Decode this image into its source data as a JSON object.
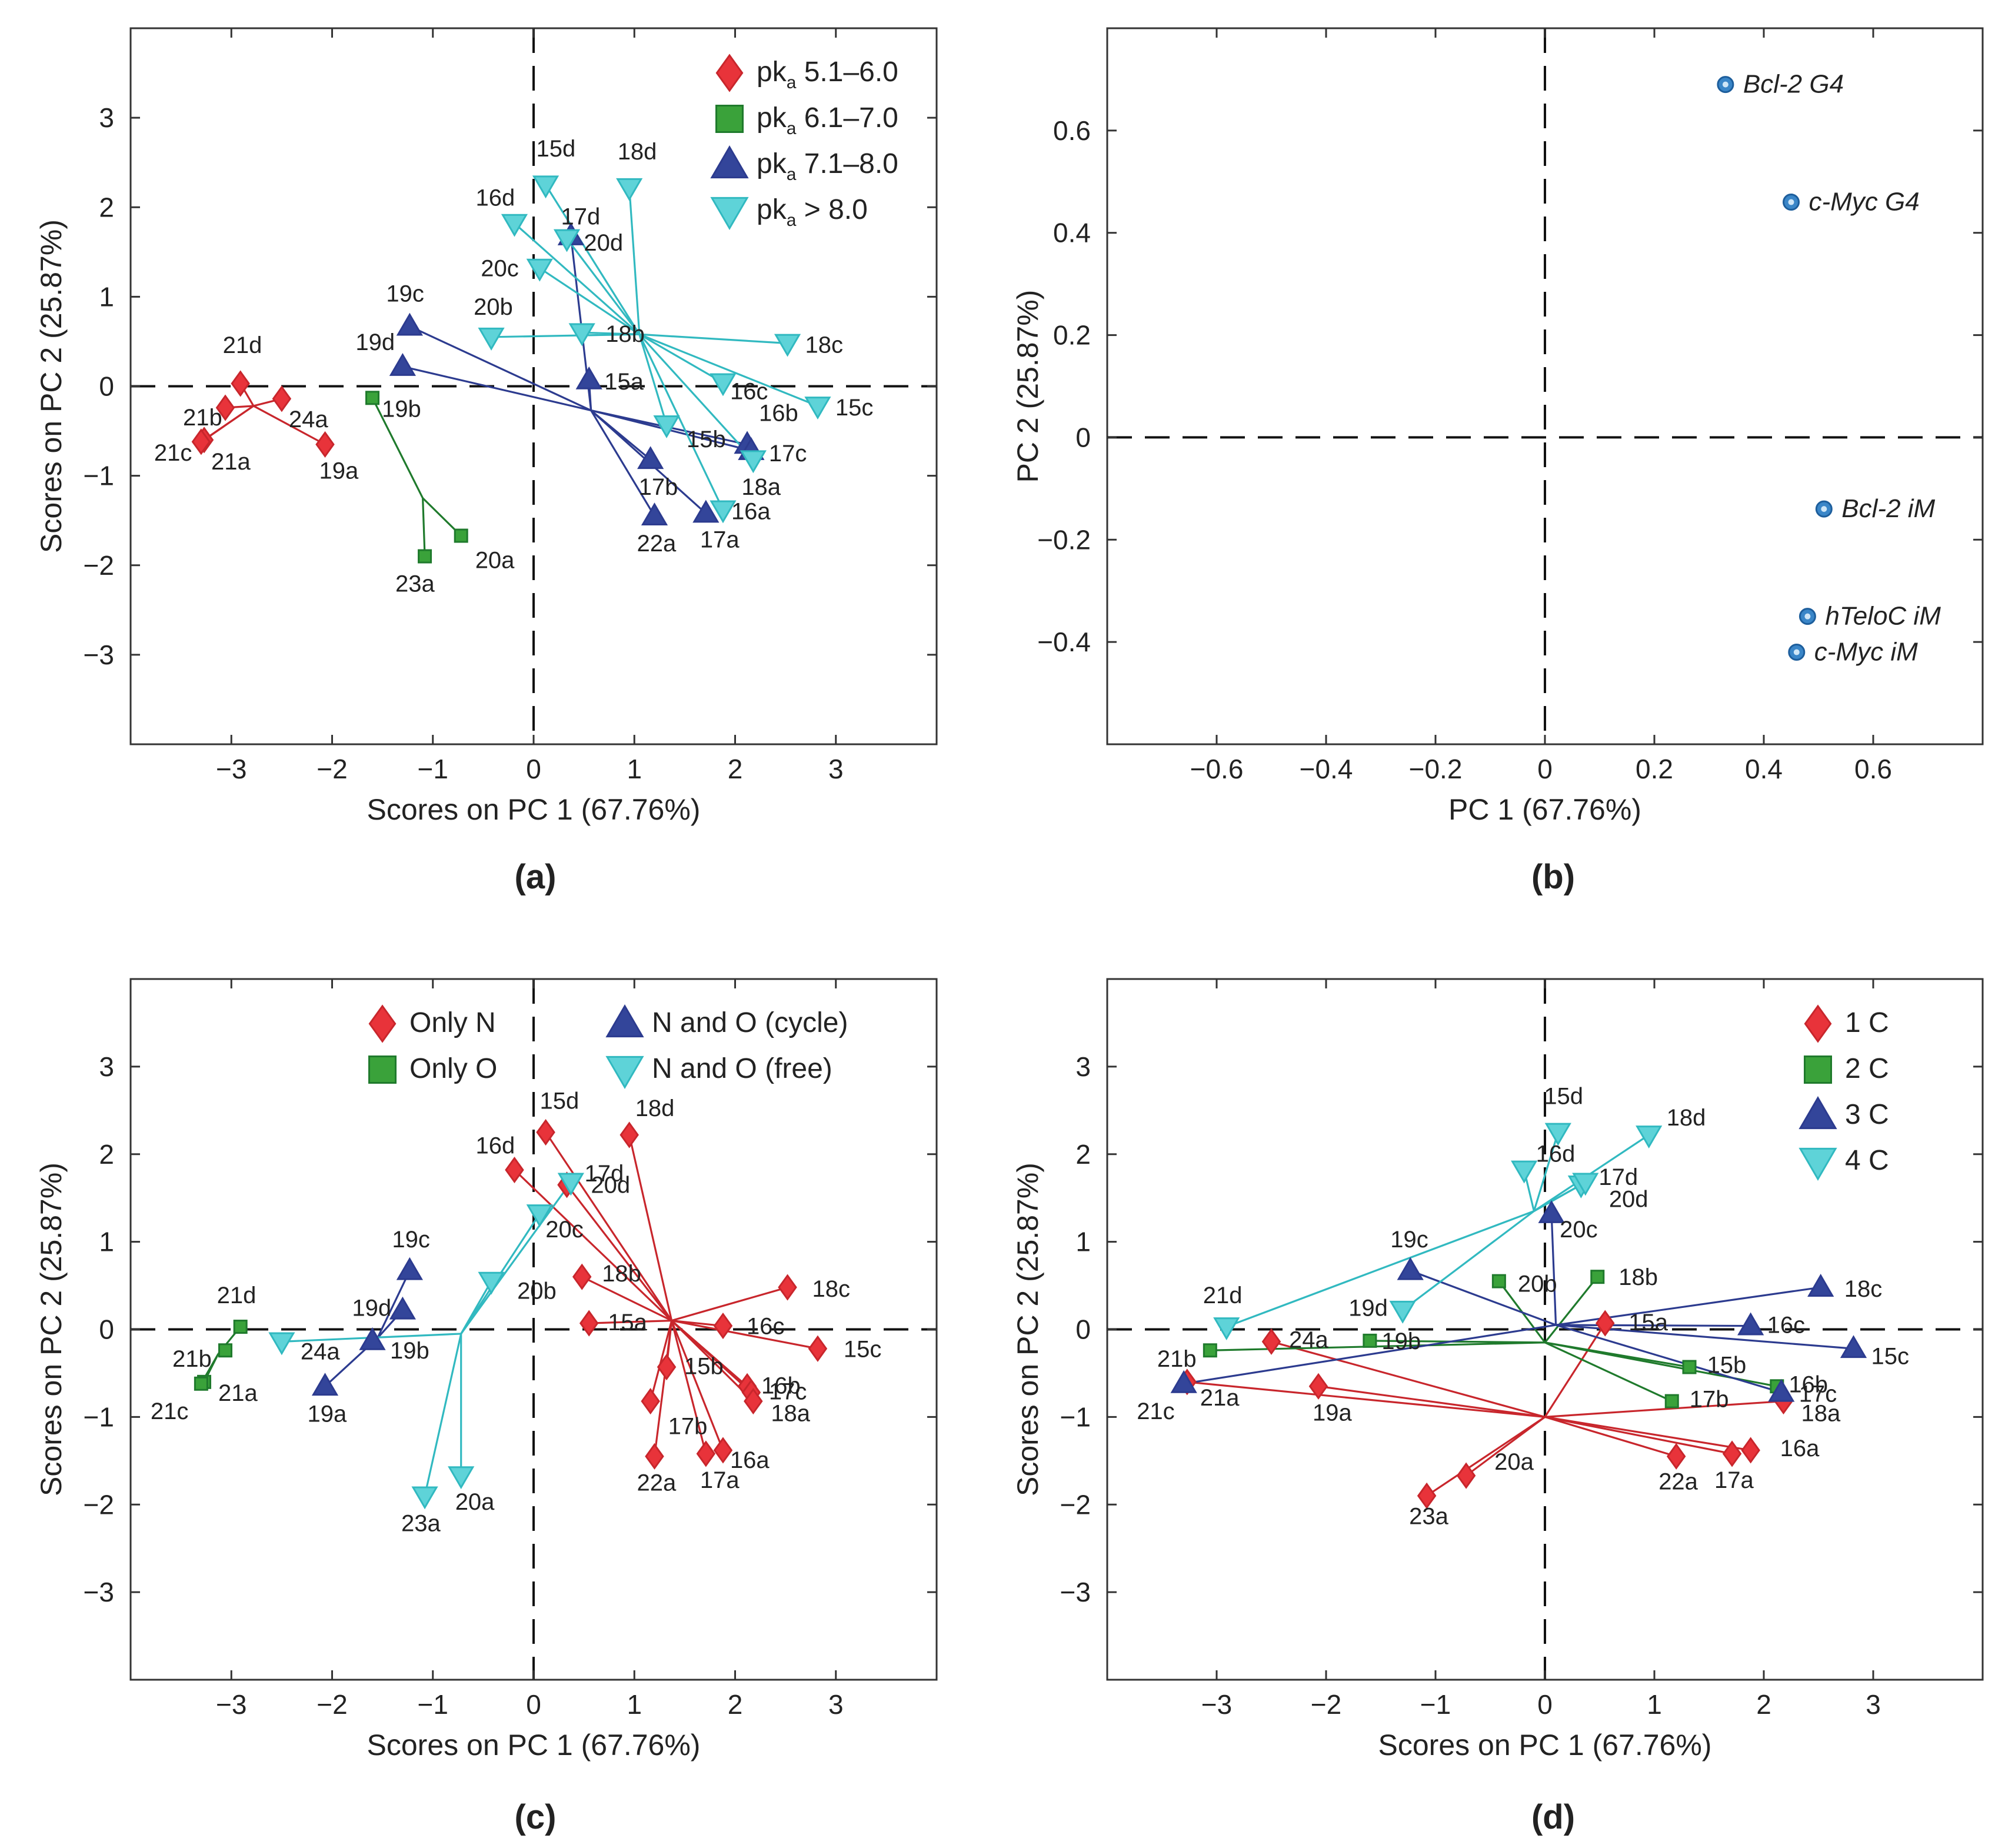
{
  "colors": {
    "red_fill": "#e8333a",
    "red_line": "#c8262c",
    "green_fill": "#3aa23a",
    "green_line": "#1f7a2c",
    "blue_fill": "#33459a",
    "blue_line": "#2c3b8f",
    "cyan_fill": "#5ed3d8",
    "cyan_line": "#31b9c0",
    "point_b": "#3a86c8"
  },
  "points": {
    "15a": [
      0.55,
      0.07
    ],
    "15b": [
      1.32,
      -0.43
    ],
    "15c": [
      2.82,
      -0.22
    ],
    "15d": [
      0.12,
      2.25
    ],
    "16a": [
      1.88,
      -1.38
    ],
    "16b": [
      2.12,
      -0.65
    ],
    "16c": [
      1.88,
      0.04
    ],
    "16d": [
      -0.19,
      1.82
    ],
    "17a": [
      1.71,
      -1.42
    ],
    "17b": [
      1.16,
      -0.82
    ],
    "17c": [
      2.16,
      -0.72
    ],
    "17d": [
      0.33,
      1.65
    ],
    "18a": [
      2.18,
      -0.82
    ],
    "18b": [
      0.48,
      0.6
    ],
    "18c": [
      2.52,
      0.48
    ],
    "18d": [
      0.95,
      2.22
    ],
    "19a": [
      -2.07,
      -0.65
    ],
    "19b": [
      -1.6,
      -0.13
    ],
    "19c": [
      -1.23,
      0.67
    ],
    "19d": [
      -1.3,
      0.22
    ],
    "20a": [
      -0.72,
      -1.67
    ],
    "20b": [
      -0.42,
      0.55
    ],
    "20c": [
      0.06,
      1.32
    ],
    "20d": [
      0.37,
      1.68
    ],
    "21a": [
      -3.27,
      -0.6
    ],
    "21b": [
      -3.06,
      -0.24
    ],
    "21c": [
      -3.3,
      -0.62
    ],
    "21d": [
      -2.91,
      0.03
    ],
    "22a": [
      1.2,
      -1.45
    ],
    "23a": [
      -1.08,
      -1.9
    ],
    "24a": [
      -2.5,
      -0.14
    ]
  },
  "chart_data": [
    {
      "id": "a",
      "type": "scatter",
      "caption": "(a)",
      "title": "",
      "xlabel": "Scores on PC 1 (67.76%)",
      "ylabel": "Scores on PC 2 (25.87%)",
      "xlim": [
        -4,
        4
      ],
      "ylim": [
        -4,
        4
      ],
      "xticks": [
        -3,
        -2,
        -1,
        0,
        1,
        2,
        3
      ],
      "yticks": [
        -3,
        -2,
        -1,
        0,
        1,
        2,
        3
      ],
      "legend_position": "top-right",
      "legend": [
        {
          "main": "pk",
          "sub": "a",
          "rest": " 5.1–6.0",
          "color": "red"
        },
        {
          "main": "pk",
          "sub": "a",
          "rest": " 6.1–7.0",
          "color": "green"
        },
        {
          "main": "pk",
          "sub": "a",
          "rest": " 7.1–8.0",
          "color": "blue"
        },
        {
          "main": "pk",
          "sub": "a",
          "rest": " > 8.0",
          "color": "cyan"
        }
      ],
      "groups": [
        {
          "name": "pKa 5.1–6.0",
          "color": "red",
          "center": [
            -2.78,
            -0.22
          ],
          "members": [
            "21a",
            "21b",
            "21c",
            "21d",
            "24a",
            "19a"
          ]
        },
        {
          "name": "pKa 6.1–7.0",
          "color": "green",
          "center": [
            -1.1,
            -1.25
          ],
          "members": [
            "19b",
            "20a",
            "23a"
          ]
        },
        {
          "name": "pKa 7.1–8.0",
          "color": "blue",
          "center": [
            0.57,
            -0.27
          ],
          "members": [
            "19c",
            "19d",
            "15a",
            "17b",
            "22a",
            "17a",
            "16b",
            "17c",
            "20d"
          ]
        },
        {
          "name": "pKa > 8.0",
          "color": "cyan",
          "center": [
            1.05,
            0.58
          ],
          "members": [
            "15d",
            "18d",
            "16d",
            "17d",
            "20c",
            "20b",
            "18b",
            "18c",
            "16c",
            "15c",
            "15b",
            "16a",
            "18a"
          ]
        }
      ]
    },
    {
      "id": "b",
      "type": "scatter",
      "caption": "(b)",
      "title": "",
      "xlabel": "PC 1 (67.76%)",
      "ylabel": "PC 2 (25.87%)",
      "xlim": [
        -0.8,
        0.8
      ],
      "ylim": [
        -0.6,
        0.8
      ],
      "xticks": [
        -0.6,
        -0.4,
        -0.2,
        0,
        0.2,
        0.4,
        0.6
      ],
      "yticks": [
        -0.4,
        -0.2,
        0,
        0.2,
        0.4,
        0.6
      ],
      "tick_labels_x": [
        "−0.6",
        "−0.4",
        "−0.2",
        "0",
        "0.2",
        "0.4",
        "0.6"
      ],
      "tick_labels_y": [
        "−0.4",
        "−0.2",
        "0",
        "0.2",
        "0.4",
        "0.6"
      ],
      "points": [
        {
          "label": "Bcl-2 G4",
          "x": 0.33,
          "y": 0.69
        },
        {
          "label": "c-Myc G4",
          "x": 0.45,
          "y": 0.46
        },
        {
          "label": "Bcl-2 iM",
          "x": 0.51,
          "y": -0.14
        },
        {
          "label": "hTeloC iM",
          "x": 0.48,
          "y": -0.35
        },
        {
          "label": "c-Myc iM",
          "x": 0.46,
          "y": -0.42
        }
      ]
    },
    {
      "id": "c",
      "type": "scatter",
      "caption": "(c)",
      "title": "",
      "xlabel": "Scores on PC 1 (67.76%)",
      "ylabel": "Scores on PC 2 (25.87%)",
      "xlim": [
        -4,
        4
      ],
      "ylim": [
        -4,
        4
      ],
      "xticks": [
        -3,
        -2,
        -1,
        0,
        1,
        2,
        3
      ],
      "yticks": [
        -3,
        -2,
        -1,
        0,
        1,
        2,
        3
      ],
      "legend_position": "top",
      "legend": [
        {
          "main": "Only N",
          "sub": "",
          "rest": "",
          "color": "red"
        },
        {
          "main": "Only O",
          "sub": "",
          "rest": "",
          "color": "green"
        },
        {
          "main": "N and O (cycle)",
          "sub": "",
          "rest": "",
          "color": "blue"
        },
        {
          "main": "N and O (free)",
          "sub": "",
          "rest": "",
          "color": "cyan"
        }
      ],
      "groups": [
        {
          "name": "Only N",
          "color": "red",
          "center": [
            1.37,
            0.1
          ],
          "members": [
            "15a",
            "15b",
            "15c",
            "15d",
            "16a",
            "16b",
            "16c",
            "16d",
            "17a",
            "17b",
            "17c",
            "17d",
            "18a",
            "18b",
            "18c",
            "18d",
            "22a"
          ]
        },
        {
          "name": "Only O",
          "color": "green",
          "center": [
            -3.13,
            -0.28
          ],
          "members": [
            "21a",
            "21b",
            "21c",
            "21d"
          ]
        },
        {
          "name": "N and O (cycle)",
          "color": "blue",
          "center": [
            -1.55,
            -0.1
          ],
          "members": [
            "19a",
            "19b",
            "19c",
            "19d"
          ]
        },
        {
          "name": "N and O (free)",
          "color": "cyan",
          "center": [
            -0.72,
            -0.05
          ],
          "members": [
            "20a",
            "20b",
            "20c",
            "20d",
            "23a",
            "24a"
          ]
        }
      ]
    },
    {
      "id": "d",
      "type": "scatter",
      "caption": "(d)",
      "title": "",
      "xlabel": "Scores on PC 1 (67.76%)",
      "ylabel": "Scores on PC 2 (25.87%)",
      "xlim": [
        -4,
        4
      ],
      "ylim": [
        -4,
        4
      ],
      "xticks": [
        -3,
        -2,
        -1,
        0,
        1,
        2,
        3
      ],
      "yticks": [
        -3,
        -2,
        -1,
        0,
        1,
        2,
        3
      ],
      "legend_position": "top-right",
      "legend": [
        {
          "main": "1 C",
          "sub": "",
          "rest": "",
          "color": "red"
        },
        {
          "main": "2 C",
          "sub": "",
          "rest": "",
          "color": "green"
        },
        {
          "main": "3 C",
          "sub": "",
          "rest": "",
          "color": "blue"
        },
        {
          "main": "4 C",
          "sub": "",
          "rest": "",
          "color": "cyan"
        }
      ],
      "groups": [
        {
          "name": "1 C",
          "color": "red",
          "center": [
            0,
            -1.0
          ],
          "members": [
            "15a",
            "16a",
            "17a",
            "18a",
            "19a",
            "20a",
            "21a",
            "22a",
            "23a",
            "24a"
          ]
        },
        {
          "name": "2 C",
          "color": "green",
          "center": [
            0,
            -0.15
          ],
          "members": [
            "15b",
            "16b",
            "17b",
            "18b",
            "19b",
            "20b",
            "21b"
          ]
        },
        {
          "name": "3 C",
          "color": "blue",
          "center": [
            0.1,
            0.05
          ],
          "members": [
            "15c",
            "16c",
            "17c",
            "18c",
            "19c",
            "20c",
            "21c"
          ]
        },
        {
          "name": "4 C",
          "color": "cyan",
          "center": [
            -0.1,
            1.35
          ],
          "members": [
            "15d",
            "16d",
            "17d",
            "18d",
            "19d",
            "20d",
            "21d"
          ]
        }
      ]
    }
  ]
}
